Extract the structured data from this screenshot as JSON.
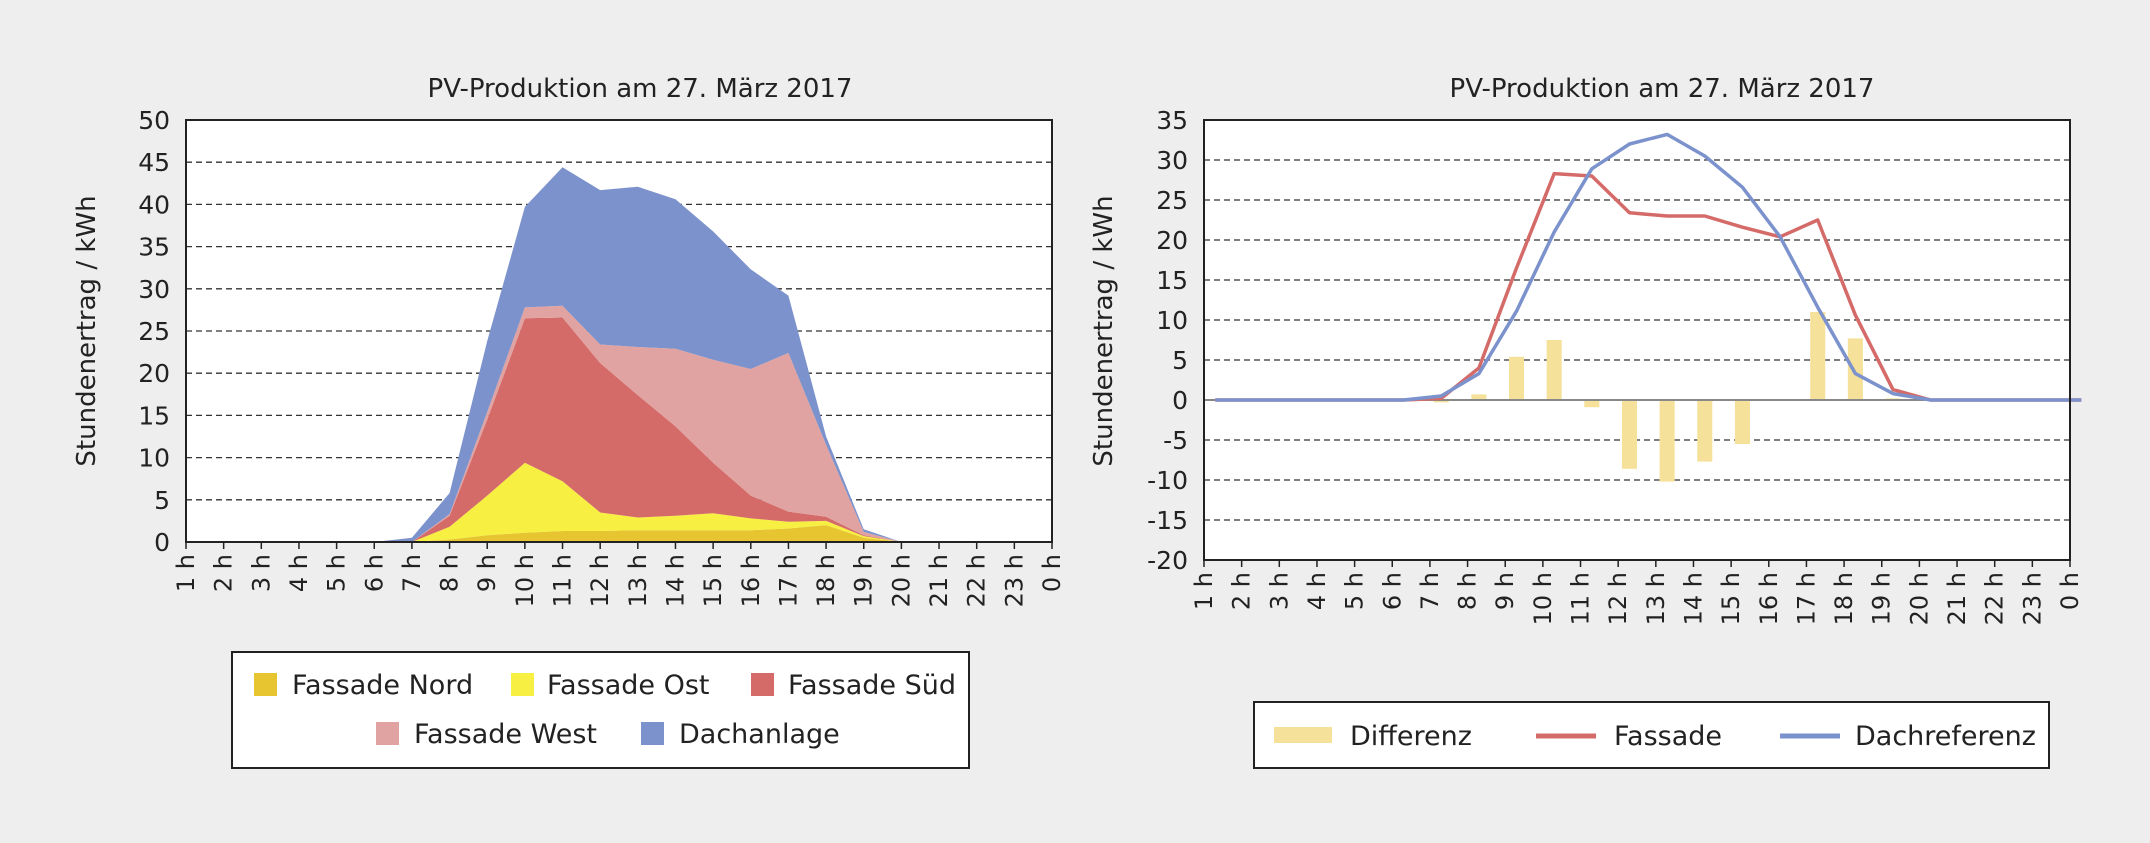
{
  "chart_data": [
    {
      "type": "area",
      "stacked": true,
      "title": "PV-Produktion am 27. März 2017",
      "ylabel": "Stundenertrag / kWh",
      "xlabel": "",
      "ylim": [
        0,
        50
      ],
      "yticks": [
        0,
        5,
        10,
        15,
        20,
        25,
        30,
        35,
        40,
        45,
        50
      ],
      "categories": [
        "1 h",
        "2 h",
        "3 h",
        "4 h",
        "5 h",
        "6 h",
        "7 h",
        "8 h",
        "9 h",
        "10 h",
        "11 h",
        "12 h",
        "13 h",
        "14 h",
        "15 h",
        "16 h",
        "17 h",
        "18 h",
        "19 h",
        "20 h",
        "21 h",
        "22 h",
        "23 h",
        "0 h"
      ],
      "grid": true,
      "legend": "bottom",
      "series": [
        {
          "name": "Fassade Nord",
          "color": "#e6c531",
          "values": [
            0,
            0,
            0,
            0,
            0,
            0,
            0,
            0.3,
            0.8,
            1.1,
            1.3,
            1.3,
            1.4,
            1.4,
            1.4,
            1.4,
            1.6,
            2.0,
            0.5,
            0,
            0,
            0,
            0,
            0
          ]
        },
        {
          "name": "Fassade Ost",
          "color": "#f7ef42",
          "values": [
            0,
            0,
            0,
            0,
            0,
            0,
            0,
            1.5,
            4.7,
            8.3,
            5.9,
            2.2,
            1.5,
            1.7,
            2.0,
            1.4,
            0.8,
            0.5,
            0.2,
            0,
            0,
            0,
            0,
            0
          ]
        },
        {
          "name": "Fassade Süd",
          "color": "#d46b69",
          "values": [
            0,
            0,
            0,
            0,
            0,
            0,
            0,
            1.3,
            9.0,
            17.1,
            19.4,
            17.7,
            14.5,
            10.6,
            6.0,
            2.7,
            1.2,
            0.5,
            0.1,
            0,
            0,
            0,
            0,
            0
          ]
        },
        {
          "name": "Fassade West",
          "color": "#e0a3a1",
          "values": [
            0,
            0,
            0,
            0,
            0,
            0,
            0,
            0.2,
            0.9,
            1.3,
            1.4,
            2.2,
            5.7,
            9.2,
            12.2,
            15.0,
            18.8,
            8.5,
            0.4,
            0,
            0,
            0,
            0,
            0
          ]
        },
        {
          "name": "Dachanlage",
          "color": "#7c92cc",
          "values": [
            0,
            0,
            0,
            0,
            0,
            0,
            0.5,
            2.5,
            8.4,
            11.9,
            16.4,
            18.3,
            19.0,
            17.7,
            15.2,
            11.8,
            6.8,
            1.0,
            0.3,
            0,
            0,
            0,
            0,
            0
          ]
        }
      ]
    },
    {
      "type": "line",
      "title": "PV-Produktion am 27. März 2017",
      "ylabel": "Stundenertrag / kWh",
      "xlabel": "",
      "ylim": [
        -20,
        35
      ],
      "yticks": [
        -20,
        -15,
        -10,
        -5,
        0,
        5,
        10,
        15,
        20,
        25,
        30,
        35
      ],
      "categories": [
        "1 h",
        "2 h",
        "3 h",
        "4 h",
        "5 h",
        "6 h",
        "7 h",
        "8 h",
        "9 h",
        "10 h",
        "11 h",
        "12 h",
        "13 h",
        "14 h",
        "15 h",
        "16 h",
        "17 h",
        "18 h",
        "19 h",
        "20 h",
        "21 h",
        "22 h",
        "23 h",
        "0 h"
      ],
      "grid": true,
      "legend": "bottom",
      "series": [
        {
          "name": "Differenz",
          "kind": "bar",
          "color": "#f5e19a",
          "values": [
            0,
            0,
            0,
            0,
            0,
            0,
            -0.3,
            0.7,
            5.4,
            7.5,
            -0.9,
            -8.6,
            -10.2,
            -7.7,
            -5.5,
            0,
            11.0,
            7.7,
            0.2,
            0,
            0,
            0,
            0,
            0
          ]
        },
        {
          "name": "Fassade",
          "kind": "line",
          "color": "#d46b69",
          "values": [
            0,
            0,
            0,
            0,
            0,
            0,
            0.2,
            4.0,
            16.5,
            28.3,
            28.0,
            23.4,
            23.0,
            23.0,
            21.6,
            20.4,
            22.5,
            10.6,
            1.3,
            0,
            0,
            0,
            0,
            0
          ]
        },
        {
          "name": "Dachreferenz",
          "kind": "line",
          "color": "#7c92cc",
          "values": [
            0,
            0,
            0,
            0,
            0,
            0,
            0.5,
            3.3,
            11.1,
            21.0,
            28.9,
            32.0,
            33.2,
            30.5,
            26.6,
            20.4,
            11.6,
            3.3,
            0.8,
            0,
            0,
            0,
            0,
            0
          ]
        }
      ]
    }
  ]
}
